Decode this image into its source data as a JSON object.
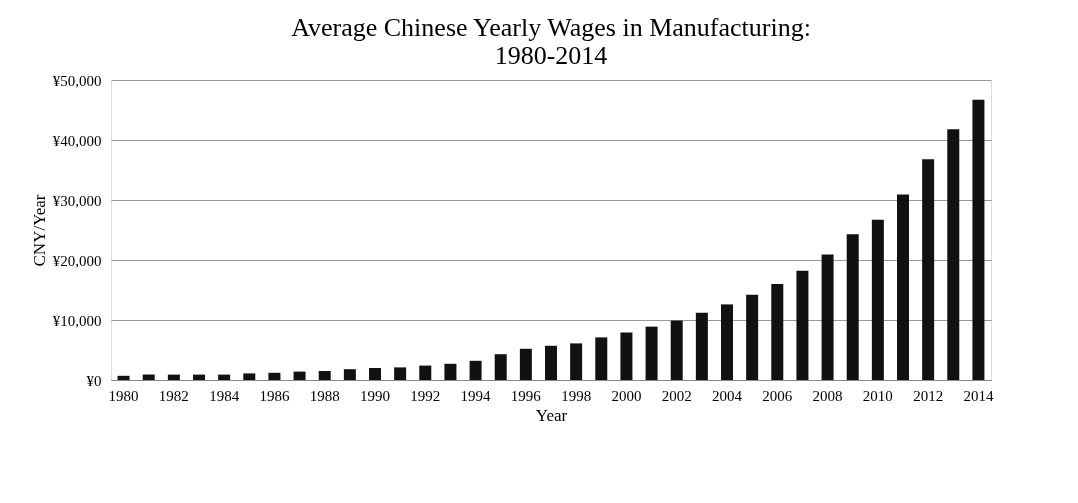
{
  "chart_data": {
    "type": "bar",
    "title": [
      "Average Chinese Yearly Wages in Manufacturing:",
      "1980-2014"
    ],
    "xlabel": "Year",
    "ylabel": "CNY/Year",
    "categories": [
      "1980",
      null,
      "1982",
      null,
      "1984",
      null,
      "1986",
      null,
      "1988",
      null,
      "1990",
      null,
      "1992",
      null,
      "1994",
      null,
      "1996",
      null,
      "1998",
      null,
      "2000",
      null,
      "2002",
      null,
      "2004",
      null,
      "2006",
      null,
      "2008",
      null,
      "2010",
      null,
      "2012",
      null,
      "2014"
    ],
    "values": [
      700,
      900,
      900,
      900,
      900,
      1100,
      1200,
      1400,
      1500,
      1800,
      2000,
      2100,
      2400,
      2700,
      3200,
      4300,
      5200,
      5700,
      6100,
      7100,
      7900,
      8900,
      9900,
      11200,
      12600,
      14200,
      16000,
      18200,
      20900,
      24300,
      26700,
      30900,
      36800,
      41800,
      46700
    ],
    "color": "#111111",
    "ylim": [
      0,
      50000
    ],
    "yticks": [
      {
        "value": 0,
        "label": "¥0"
      },
      {
        "value": 10000,
        "label": "¥10,000"
      },
      {
        "value": 20000,
        "label": "¥20,000"
      },
      {
        "value": 30000,
        "label": "¥30,000"
      },
      {
        "value": 40000,
        "label": "¥40,000"
      },
      {
        "value": 50000,
        "label": "¥50,000"
      }
    ],
    "grid": "y"
  }
}
